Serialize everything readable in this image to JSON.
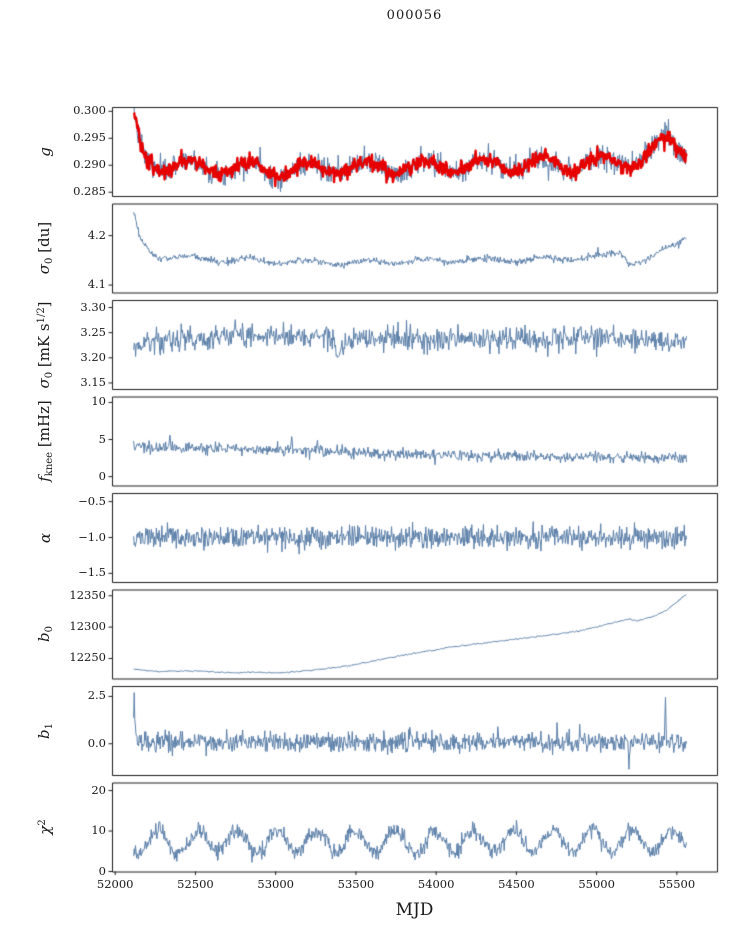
{
  "chart_data": {
    "type": "line",
    "title": "000056",
    "x_axis": {
      "label": "MJD",
      "lim": [
        51980,
        55750
      ],
      "ticks": [
        52000,
        52500,
        53000,
        53500,
        54000,
        54500,
        55000,
        55500
      ],
      "tick_labels": [
        "52000",
        "52500",
        "53000",
        "53500",
        "54000",
        "54500",
        "55000",
        "55500"
      ]
    },
    "x_data_range": [
      52115,
      55560
    ],
    "grid": false,
    "legend": "none",
    "panels": [
      {
        "name": "g",
        "ylabel_parts": [
          {
            "t": "g",
            "italic": true
          }
        ],
        "ylim": [
          0.2843,
          0.3008
        ],
        "yticks": [
          {
            "v": 0.285,
            "label": "0.285"
          },
          {
            "v": 0.29,
            "label": "0.290"
          },
          {
            "v": 0.295,
            "label": "0.295"
          },
          {
            "v": 0.3,
            "label": "0.300"
          }
        ],
        "series": [
          {
            "name": "gain-raw",
            "color": "#5b7fa8",
            "width": 1,
            "n": 950,
            "seed": 7,
            "noise": 0.0011,
            "osc": {
              "amp": 0.0012,
              "period": 365,
              "x0": 52470
            },
            "trend": [
              [
                52115,
                0.2995
              ],
              [
                52140,
                0.2952
              ],
              [
                52185,
                0.2913
              ],
              [
                52270,
                0.2902
              ],
              [
                52450,
                0.2898
              ],
              [
                52750,
                0.2895
              ],
              [
                53050,
                0.2891
              ],
              [
                53350,
                0.2895
              ],
              [
                53750,
                0.2897
              ],
              [
                54150,
                0.2899
              ],
              [
                54550,
                0.2901
              ],
              [
                54950,
                0.2903
              ],
              [
                55200,
                0.2907
              ],
              [
                55320,
                0.2918
              ],
              [
                55440,
                0.2947
              ],
              [
                55500,
                0.2938
              ],
              [
                55560,
                0.2924
              ]
            ],
            "spikes": [
              [
                52660,
                0.2872
              ],
              [
                53070,
                0.2869
              ],
              [
                53990,
                0.2878
              ],
              [
                55230,
                0.2892
              ]
            ]
          },
          {
            "name": "gain-smoothed",
            "color": "#e60000",
            "width": 2.4,
            "n": 950,
            "seed": 8,
            "noise": 0.0007,
            "osc": {
              "amp": 0.0012,
              "period": 365,
              "x0": 52470
            },
            "trend": [
              [
                52115,
                0.2995
              ],
              [
                52140,
                0.2952
              ],
              [
                52185,
                0.2913
              ],
              [
                52270,
                0.2902
              ],
              [
                52450,
                0.2898
              ],
              [
                52750,
                0.2895
              ],
              [
                53050,
                0.2891
              ],
              [
                53350,
                0.2895
              ],
              [
                53750,
                0.2897
              ],
              [
                54150,
                0.2899
              ],
              [
                54550,
                0.2901
              ],
              [
                54950,
                0.2903
              ],
              [
                55200,
                0.2907
              ],
              [
                55320,
                0.2918
              ],
              [
                55440,
                0.2947
              ],
              [
                55500,
                0.2938
              ],
              [
                55560,
                0.2924
              ]
            ],
            "spikes": []
          }
        ]
      },
      {
        "name": "sigma0_du",
        "ylabel_parts": [
          {
            "t": "σ",
            "italic": true
          },
          {
            "t": "0",
            "sub": true
          },
          {
            "t": " [du]"
          }
        ],
        "ylim": [
          4.085,
          4.265
        ],
        "yticks": [
          {
            "v": 4.1,
            "label": "4.1"
          },
          {
            "v": 4.2,
            "label": "4.2"
          }
        ],
        "series": [
          {
            "name": "sigma0-du",
            "color": "#5b7fa8",
            "width": 1,
            "n": 850,
            "seed": 21,
            "noise": 0.0035,
            "osc": {
              "amp": 0.0045,
              "period": 365,
              "x0": 52470
            },
            "trend": [
              [
                52115,
                4.247
              ],
              [
                52150,
                4.197
              ],
              [
                52230,
                4.161
              ],
              [
                52380,
                4.156
              ],
              [
                52650,
                4.151
              ],
              [
                53050,
                4.148
              ],
              [
                53450,
                4.145
              ],
              [
                53850,
                4.148
              ],
              [
                54250,
                4.151
              ],
              [
                54650,
                4.152
              ],
              [
                55050,
                4.158
              ],
              [
                55150,
                4.168
              ],
              [
                55210,
                4.143
              ],
              [
                55330,
                4.153
              ],
              [
                55450,
                4.175
              ],
              [
                55560,
                4.199
              ]
            ],
            "spikes": []
          }
        ]
      },
      {
        "name": "sigma0_mK",
        "ylabel_parts": [
          {
            "t": "σ",
            "italic": true
          },
          {
            "t": "0",
            "sub": true
          },
          {
            "t": " [mK s"
          },
          {
            "t": "1/2",
            "sup": true
          },
          {
            "t": "]"
          }
        ],
        "ylim": [
          3.138,
          3.315
        ],
        "yticks": [
          {
            "v": 3.15,
            "label": "3.15"
          },
          {
            "v": 3.2,
            "label": "3.20"
          },
          {
            "v": 3.25,
            "label": "3.25"
          },
          {
            "v": 3.3,
            "label": "3.30"
          }
        ],
        "series": [
          {
            "name": "sigma0-mK",
            "color": "#5b7fa8",
            "width": 1,
            "n": 850,
            "seed": 33,
            "noise": 0.012,
            "trend": [
              [
                52115,
                3.217
              ],
              [
                52200,
                3.231
              ],
              [
                52550,
                3.24
              ],
              [
                52950,
                3.245
              ],
              [
                53340,
                3.242
              ],
              [
                53400,
                3.213
              ],
              [
                53500,
                3.238
              ],
              [
                53950,
                3.236
              ],
              [
                54450,
                3.237
              ],
              [
                54950,
                3.241
              ],
              [
                55250,
                3.236
              ],
              [
                55560,
                3.227
              ]
            ],
            "spikes": []
          }
        ]
      },
      {
        "name": "f_knee",
        "ylabel_parts": [
          {
            "t": "f",
            "italic": true
          },
          {
            "t": "knee",
            "sub": true
          },
          {
            "t": " [mHz]"
          }
        ],
        "ylim": [
          -1.2,
          10.8
        ],
        "yticks": [
          {
            "v": 0,
            "label": "0"
          },
          {
            "v": 5,
            "label": "5"
          },
          {
            "v": 10,
            "label": "10"
          }
        ],
        "series": [
          {
            "name": "f-knee",
            "color": "#5b7fa8",
            "width": 1,
            "n": 900,
            "seed": 45,
            "noise": 0.36,
            "clampMin": 0.4,
            "trend": [
              [
                52115,
                4.0
              ],
              [
                52450,
                3.9
              ],
              [
                52850,
                3.7
              ],
              [
                53250,
                3.4
              ],
              [
                53650,
                3.1
              ],
              [
                54050,
                2.9
              ],
              [
                54450,
                2.75
              ],
              [
                54850,
                2.65
              ],
              [
                55250,
                2.55
              ],
              [
                55560,
                2.5
              ]
            ],
            "spikes": [
              [
                52340,
                5.6
              ],
              [
                53100,
                5.4
              ],
              [
                53260,
                4.9
              ]
            ]
          }
        ]
      },
      {
        "name": "alpha",
        "ylabel_parts": [
          {
            "t": "α",
            "italic": true
          }
        ],
        "ylim": [
          -1.62,
          -0.38
        ],
        "yticks": [
          {
            "v": -0.5,
            "label": "−0.5"
          },
          {
            "v": -1.0,
            "label": "−1.0"
          },
          {
            "v": -1.5,
            "label": "−1.5"
          }
        ],
        "series": [
          {
            "name": "alpha",
            "color": "#5b7fa8",
            "width": 1,
            "n": 1000,
            "seed": 57,
            "noise": 0.075,
            "trend": [
              [
                52115,
                -1.0
              ],
              [
                55560,
                -1.0
              ]
            ],
            "spikes": []
          }
        ]
      },
      {
        "name": "b0",
        "ylabel_parts": [
          {
            "t": "b",
            "italic": true
          },
          {
            "t": "0",
            "sub": true
          }
        ],
        "ylim": [
          12218,
          12360
        ],
        "yticks": [
          {
            "v": 12250,
            "label": "12250"
          },
          {
            "v": 12300,
            "label": "12300"
          },
          {
            "v": 12350,
            "label": "12350"
          }
        ],
        "series": [
          {
            "name": "b0",
            "color": "#5b7fa8",
            "width": 1,
            "n": 500,
            "seed": 69,
            "noise": 0.5,
            "trend": [
              [
                52115,
                12233
              ],
              [
                52260,
                12229
              ],
              [
                52420,
                12230
              ],
              [
                52580,
                12229
              ],
              [
                52730,
                12227
              ],
              [
                52880,
                12228
              ],
              [
                53030,
                12227
              ],
              [
                53130,
                12229
              ],
              [
                53290,
                12233
              ],
              [
                53450,
                12238
              ],
              [
                53610,
                12246
              ],
              [
                53770,
                12254
              ],
              [
                53930,
                12261
              ],
              [
                54090,
                12268
              ],
              [
                54250,
                12273
              ],
              [
                54410,
                12278
              ],
              [
                54570,
                12283
              ],
              [
                54730,
                12288
              ],
              [
                54890,
                12294
              ],
              [
                55010,
                12301
              ],
              [
                55120,
                12308
              ],
              [
                55200,
                12313
              ],
              [
                55260,
                12310
              ],
              [
                55360,
                12318
              ],
              [
                55430,
                12326
              ],
              [
                55490,
                12338
              ],
              [
                55530,
                12347
              ],
              [
                55560,
                12352
              ]
            ],
            "spikes": []
          }
        ]
      },
      {
        "name": "b1",
        "ylabel_parts": [
          {
            "t": "b",
            "italic": true
          },
          {
            "t": "1",
            "sub": true
          }
        ],
        "ylim": [
          -1.65,
          3.05
        ],
        "yticks": [
          {
            "v": 0.0,
            "label": "0.0"
          },
          {
            "v": 2.5,
            "label": "2.5"
          }
        ],
        "series": [
          {
            "name": "b1",
            "color": "#5b7fa8",
            "width": 1,
            "n": 1000,
            "seed": 81,
            "noise": 0.26,
            "trend": [
              [
                52115,
                0.12
              ],
              [
                55560,
                0.08
              ]
            ],
            "spikes": [
              [
                52118,
                2.7
              ],
              [
                52126,
                1.0
              ],
              [
                55200,
                -1.35
              ],
              [
                55430,
                2.45
              ]
            ]
          }
        ]
      },
      {
        "name": "chi2",
        "ylabel_parts": [
          {
            "t": "χ",
            "italic": true
          },
          {
            "t": "2",
            "sup": true
          }
        ],
        "ylim": [
          0,
          22
        ],
        "yticks": [
          {
            "v": 0,
            "label": "0"
          },
          {
            "v": 10,
            "label": "10"
          },
          {
            "v": 20,
            "label": "20"
          }
        ],
        "series": [
          {
            "name": "chi2",
            "color": "#5b7fa8",
            "width": 1,
            "n": 950,
            "seed": 93,
            "noise": 1.0,
            "osc": {
              "amp": 2.7,
              "period": 246,
              "x0": 52270
            },
            "trend": [
              [
                52115,
                7.2
              ],
              [
                53000,
                7.5
              ],
              [
                54000,
                7.3
              ],
              [
                55000,
                7.6
              ],
              [
                55560,
                7.5
              ]
            ],
            "spikes": []
          }
        ]
      }
    ]
  }
}
